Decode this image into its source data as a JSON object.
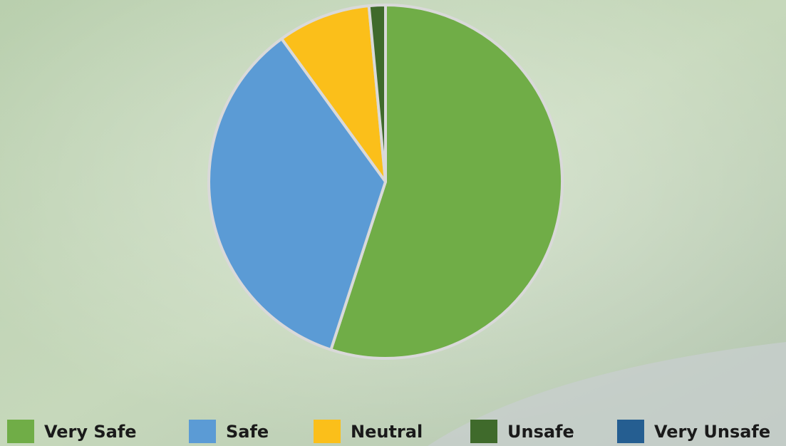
{
  "chart_data": {
    "type": "pie",
    "categories": [
      "Very Safe",
      "Safe",
      "Neutral",
      "Unsafe",
      "Very Unsafe"
    ],
    "values": [
      55,
      35,
      8.5,
      1.5,
      0
    ],
    "colors": [
      "#70ad47",
      "#5b9bd5",
      "#fbbf1a",
      "#3f6a2b",
      "#255e91"
    ],
    "legend": "bottom"
  }
}
